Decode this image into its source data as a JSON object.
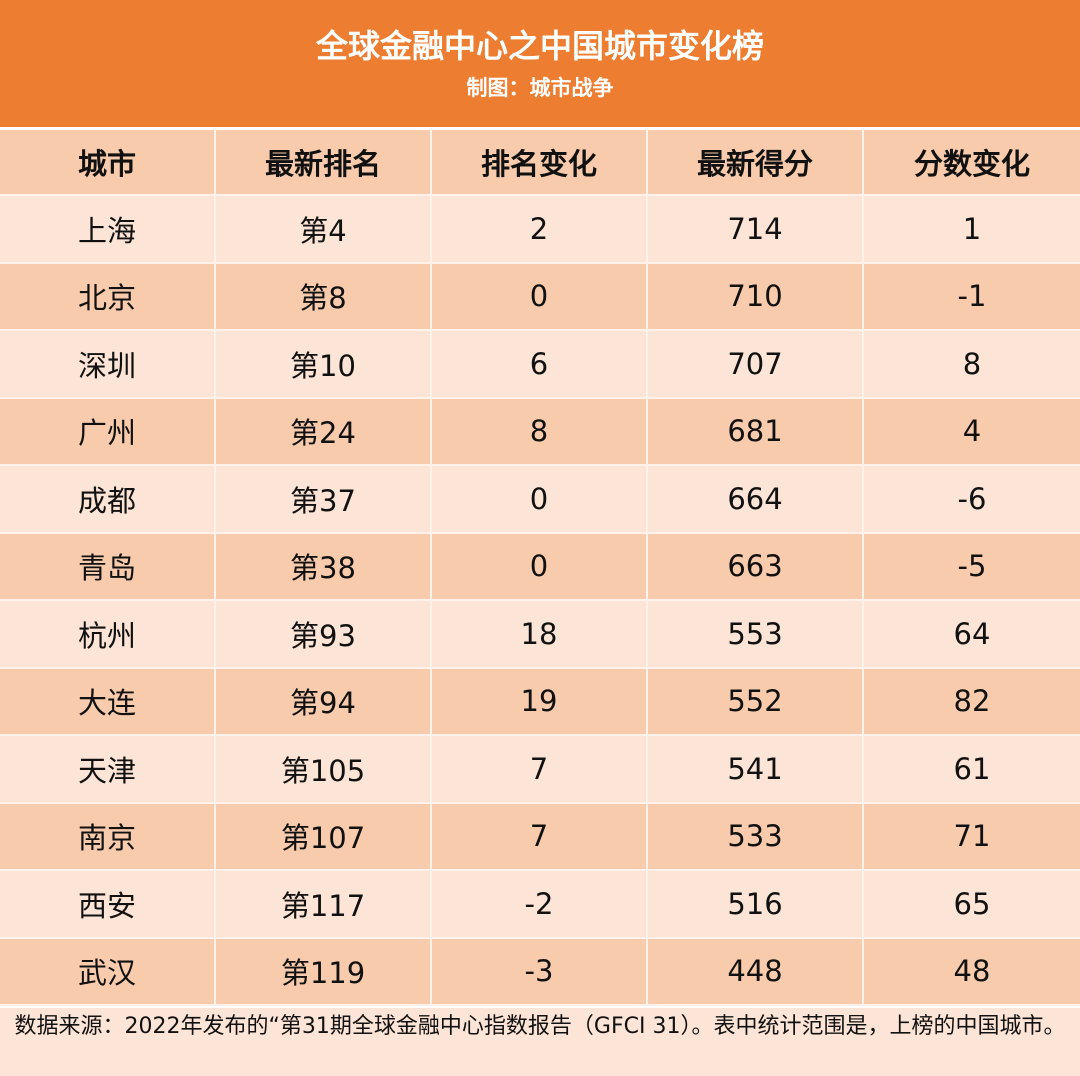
{
  "header": {
    "title": "全球金融中心之中国城市变化榜",
    "subtitle": "制图：城市战争"
  },
  "colors": {
    "banner": "#ED7D31",
    "header_row": "#F8CBAD",
    "row_light": "#FCE4D6",
    "row_dark": "#F8CBAD"
  },
  "table": {
    "columns": [
      "城市",
      "最新排名",
      "排名变化",
      "最新得分",
      "分数变化"
    ],
    "rows": [
      [
        "上海",
        "第4",
        "2",
        "714",
        "1"
      ],
      [
        "北京",
        "第8",
        "0",
        "710",
        "-1"
      ],
      [
        "深圳",
        "第10",
        "6",
        "707",
        "8"
      ],
      [
        "广州",
        "第24",
        "8",
        "681",
        "4"
      ],
      [
        "成都",
        "第37",
        "0",
        "664",
        "-6"
      ],
      [
        "青岛",
        "第38",
        "0",
        "663",
        "-5"
      ],
      [
        "杭州",
        "第93",
        "18",
        "553",
        "64"
      ],
      [
        "大连",
        "第94",
        "19",
        "552",
        "82"
      ],
      [
        "天津",
        "第105",
        "7",
        "541",
        "61"
      ],
      [
        "南京",
        "第107",
        "7",
        "533",
        "71"
      ],
      [
        "西安",
        "第117",
        "-2",
        "516",
        "65"
      ],
      [
        "武汉",
        "第119",
        "-3",
        "448",
        "48"
      ]
    ]
  },
  "footer": {
    "note": "数据来源：2022年发布的“第31期全球金融中心指数报告（GFCI 31）。表中统计范围是，上榜的中国城市。"
  }
}
